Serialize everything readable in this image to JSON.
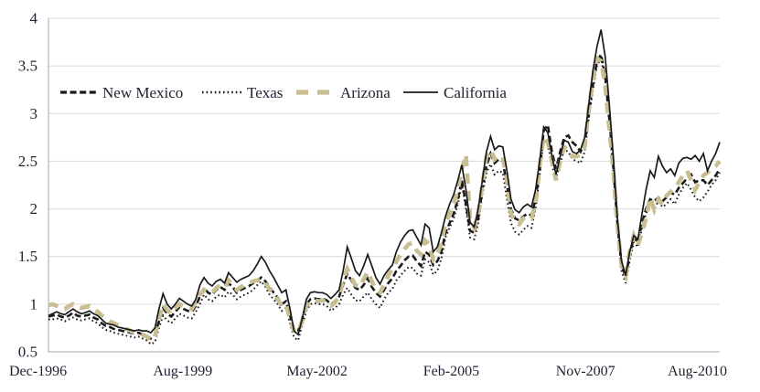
{
  "chart_data": {
    "type": "line",
    "title": "",
    "xlabel": "",
    "ylabel": "",
    "x_tick_labels": [
      "Dec-1996",
      "Aug-1999",
      "May-2002",
      "Feb-2005",
      "Nov-2007",
      "Aug-2010"
    ],
    "y_tick_labels": [
      "0.5",
      "1",
      "1.5",
      "2",
      "2.5",
      "3",
      "3.5",
      "4"
    ],
    "y_ticks": [
      0.5,
      1,
      1.5,
      2,
      2.5,
      3,
      3.5,
      4
    ],
    "ylim": [
      0.5,
      4
    ],
    "n_points": 165,
    "x_range_note": "monthly data from Dec-1996 to Aug-2010",
    "grid": "horizontal",
    "legend_position": "inside-top-left-row",
    "colors": {
      "black_series": "#1a1a1a",
      "arizona_tan": "#c9bd92",
      "gridline": "#d9d9d9",
      "axis_line": "#a6a6a6",
      "text": "#1f2230",
      "background": "#ffffff"
    },
    "series": [
      {
        "name": "New Mexico",
        "style": "dashed",
        "color": "#1a1a1a",
        "values": [
          0.87,
          0.88,
          0.89,
          0.87,
          0.86,
          0.88,
          0.91,
          0.88,
          0.87,
          0.88,
          0.89,
          0.86,
          0.84,
          0.8,
          0.77,
          0.76,
          0.74,
          0.73,
          0.72,
          0.71,
          0.7,
          0.69,
          0.7,
          0.68,
          0.67,
          0.64,
          0.68,
          0.82,
          0.96,
          0.9,
          0.87,
          0.92,
          0.97,
          0.95,
          0.93,
          0.92,
          0.98,
          1.08,
          1.17,
          1.12,
          1.1,
          1.15,
          1.18,
          1.15,
          1.22,
          1.18,
          1.12,
          1.15,
          1.17,
          1.19,
          1.22,
          1.25,
          1.28,
          1.24,
          1.18,
          1.12,
          1.07,
          1.0,
          1.03,
          0.88,
          0.74,
          0.72,
          0.85,
          1.0,
          1.05,
          1.06,
          1.05,
          1.06,
          1.04,
          1.0,
          1.03,
          1.08,
          1.2,
          1.32,
          1.25,
          1.17,
          1.15,
          1.2,
          1.27,
          1.18,
          1.12,
          1.08,
          1.15,
          1.22,
          1.27,
          1.35,
          1.4,
          1.46,
          1.5,
          1.51,
          1.45,
          1.4,
          1.55,
          1.52,
          1.41,
          1.45,
          1.55,
          1.75,
          1.85,
          1.95,
          2.1,
          2.3,
          2.05,
          1.77,
          1.75,
          1.9,
          2.2,
          2.45,
          2.58,
          2.48,
          2.52,
          2.5,
          2.25,
          2.0,
          1.9,
          1.88,
          1.92,
          1.95,
          1.93,
          2.1,
          2.4,
          2.82,
          2.88,
          2.6,
          2.42,
          2.6,
          2.75,
          2.77,
          2.7,
          2.66,
          2.6,
          2.7,
          3.0,
          3.3,
          3.55,
          3.62,
          3.4,
          2.95,
          2.45,
          1.85,
          1.42,
          1.28,
          1.52,
          1.7,
          1.65,
          1.85,
          2.0,
          2.1,
          2.08,
          2.12,
          2.08,
          2.12,
          2.17,
          2.15,
          2.22,
          2.27,
          2.32,
          2.36,
          2.28,
          2.3,
          2.3,
          2.25,
          2.3,
          2.35,
          2.42
        ]
      },
      {
        "name": "Texas",
        "style": "dotted",
        "color": "#1a1a1a",
        "values": [
          0.84,
          0.84,
          0.85,
          0.84,
          0.82,
          0.84,
          0.86,
          0.84,
          0.83,
          0.84,
          0.85,
          0.82,
          0.8,
          0.76,
          0.73,
          0.72,
          0.7,
          0.69,
          0.68,
          0.67,
          0.66,
          0.65,
          0.66,
          0.64,
          0.62,
          0.58,
          0.6,
          0.75,
          0.88,
          0.83,
          0.8,
          0.85,
          0.9,
          0.88,
          0.86,
          0.85,
          0.92,
          1.0,
          1.1,
          1.05,
          1.03,
          1.08,
          1.1,
          1.07,
          1.13,
          1.1,
          1.05,
          1.08,
          1.1,
          1.12,
          1.15,
          1.2,
          1.24,
          1.18,
          1.1,
          1.05,
          1.0,
          0.93,
          0.96,
          0.8,
          0.65,
          0.62,
          0.78,
          0.93,
          1.0,
          1.01,
          1.0,
          1.0,
          0.98,
          0.93,
          0.96,
          1.0,
          1.1,
          1.17,
          1.1,
          1.04,
          1.03,
          1.08,
          1.12,
          1.05,
          1.0,
          0.96,
          1.05,
          1.12,
          1.16,
          1.25,
          1.3,
          1.35,
          1.39,
          1.38,
          1.32,
          1.3,
          1.47,
          1.44,
          1.31,
          1.35,
          1.48,
          1.7,
          1.8,
          1.9,
          2.05,
          2.26,
          2.0,
          1.7,
          1.68,
          1.85,
          2.15,
          2.38,
          2.47,
          2.36,
          2.4,
          2.38,
          2.1,
          1.85,
          1.76,
          1.73,
          1.78,
          1.82,
          1.8,
          2.0,
          2.35,
          2.73,
          2.68,
          2.45,
          2.32,
          2.48,
          2.62,
          2.6,
          2.52,
          2.5,
          2.48,
          2.6,
          2.95,
          3.25,
          3.5,
          3.58,
          3.35,
          2.9,
          2.4,
          1.8,
          1.35,
          1.22,
          1.45,
          1.65,
          1.6,
          1.8,
          1.95,
          2.05,
          2.0,
          2.08,
          2.02,
          2.05,
          2.1,
          2.05,
          2.15,
          2.22,
          2.27,
          2.2,
          2.12,
          2.08,
          2.12,
          2.18,
          2.25,
          2.3,
          2.38
        ]
      },
      {
        "name": "Arizona",
        "style": "thick-dash",
        "color": "#c9bd92",
        "values": [
          0.99,
          1.0,
          0.98,
          0.96,
          0.95,
          0.98,
          1.0,
          0.97,
          0.96,
          0.97,
          0.98,
          0.95,
          0.92,
          0.88,
          0.85,
          0.82,
          0.8,
          0.78,
          0.76,
          0.74,
          0.72,
          0.7,
          0.7,
          0.68,
          0.66,
          0.62,
          0.66,
          0.85,
          1.0,
          0.94,
          0.9,
          0.96,
          1.0,
          0.98,
          0.96,
          0.95,
          1.02,
          1.1,
          1.15,
          1.12,
          1.12,
          1.17,
          1.2,
          1.17,
          1.25,
          1.2,
          1.15,
          1.18,
          1.2,
          1.22,
          1.24,
          1.25,
          1.26,
          1.22,
          1.16,
          1.1,
          1.05,
          0.98,
          1.0,
          0.85,
          0.72,
          0.7,
          0.83,
          0.98,
          1.03,
          1.04,
          1.03,
          1.04,
          1.02,
          0.98,
          1.02,
          1.08,
          1.25,
          1.37,
          1.28,
          1.2,
          1.18,
          1.26,
          1.34,
          1.24,
          1.15,
          1.12,
          1.2,
          1.3,
          1.37,
          1.45,
          1.52,
          1.58,
          1.63,
          1.64,
          1.56,
          1.52,
          1.67,
          1.63,
          1.47,
          1.52,
          1.65,
          1.85,
          1.95,
          2.05,
          2.2,
          2.42,
          2.57,
          1.9,
          1.8,
          1.95,
          2.25,
          2.55,
          2.62,
          2.52,
          2.56,
          2.54,
          2.3,
          1.95,
          1.86,
          1.84,
          1.9,
          1.92,
          1.9,
          2.05,
          2.45,
          2.76,
          2.7,
          2.5,
          2.3,
          2.5,
          2.65,
          2.62,
          2.55,
          2.55,
          2.58,
          2.65,
          3.05,
          3.35,
          3.58,
          3.55,
          3.3,
          2.85,
          2.4,
          1.82,
          1.4,
          1.3,
          1.55,
          1.72,
          1.62,
          1.75,
          1.9,
          2.12,
          1.99,
          2.1,
          2.05,
          2.14,
          2.18,
          2.22,
          2.28,
          2.35,
          2.4,
          2.3,
          2.2,
          2.28,
          2.35,
          2.38,
          2.42,
          2.45,
          2.5
        ]
      },
      {
        "name": "California",
        "style": "solid",
        "color": "#1a1a1a",
        "values": [
          0.88,
          0.9,
          0.92,
          0.9,
          0.89,
          0.92,
          0.95,
          0.92,
          0.9,
          0.91,
          0.93,
          0.9,
          0.88,
          0.84,
          0.8,
          0.79,
          0.78,
          0.76,
          0.75,
          0.74,
          0.73,
          0.72,
          0.73,
          0.72,
          0.72,
          0.7,
          0.75,
          0.95,
          1.11,
          1.0,
          0.95,
          1.0,
          1.06,
          1.03,
          1.0,
          0.98,
          1.05,
          1.2,
          1.28,
          1.22,
          1.19,
          1.24,
          1.26,
          1.22,
          1.33,
          1.28,
          1.23,
          1.26,
          1.28,
          1.3,
          1.35,
          1.42,
          1.5,
          1.44,
          1.35,
          1.28,
          1.2,
          1.12,
          1.15,
          0.95,
          0.72,
          0.68,
          0.85,
          1.05,
          1.12,
          1.13,
          1.12,
          1.12,
          1.1,
          1.06,
          1.1,
          1.15,
          1.35,
          1.6,
          1.48,
          1.35,
          1.3,
          1.4,
          1.52,
          1.4,
          1.28,
          1.21,
          1.3,
          1.36,
          1.41,
          1.55,
          1.65,
          1.72,
          1.77,
          1.78,
          1.7,
          1.62,
          1.84,
          1.8,
          1.55,
          1.6,
          1.75,
          1.92,
          2.05,
          2.15,
          2.3,
          2.46,
          2.2,
          1.86,
          1.81,
          2.0,
          2.3,
          2.6,
          2.76,
          2.62,
          2.66,
          2.65,
          2.4,
          2.1,
          1.99,
          1.96,
          2.02,
          2.05,
          2.02,
          2.2,
          2.5,
          2.86,
          2.8,
          2.55,
          2.36,
          2.55,
          2.72,
          2.7,
          2.6,
          2.58,
          2.62,
          2.75,
          3.1,
          3.45,
          3.7,
          3.88,
          3.6,
          3.1,
          2.55,
          1.9,
          1.45,
          1.3,
          1.55,
          1.72,
          1.68,
          1.95,
          2.2,
          2.4,
          2.33,
          2.55,
          2.45,
          2.38,
          2.42,
          2.35,
          2.48,
          2.53,
          2.54,
          2.52,
          2.56,
          2.5,
          2.58,
          2.4,
          2.5,
          2.58,
          2.7
        ]
      }
    ]
  }
}
